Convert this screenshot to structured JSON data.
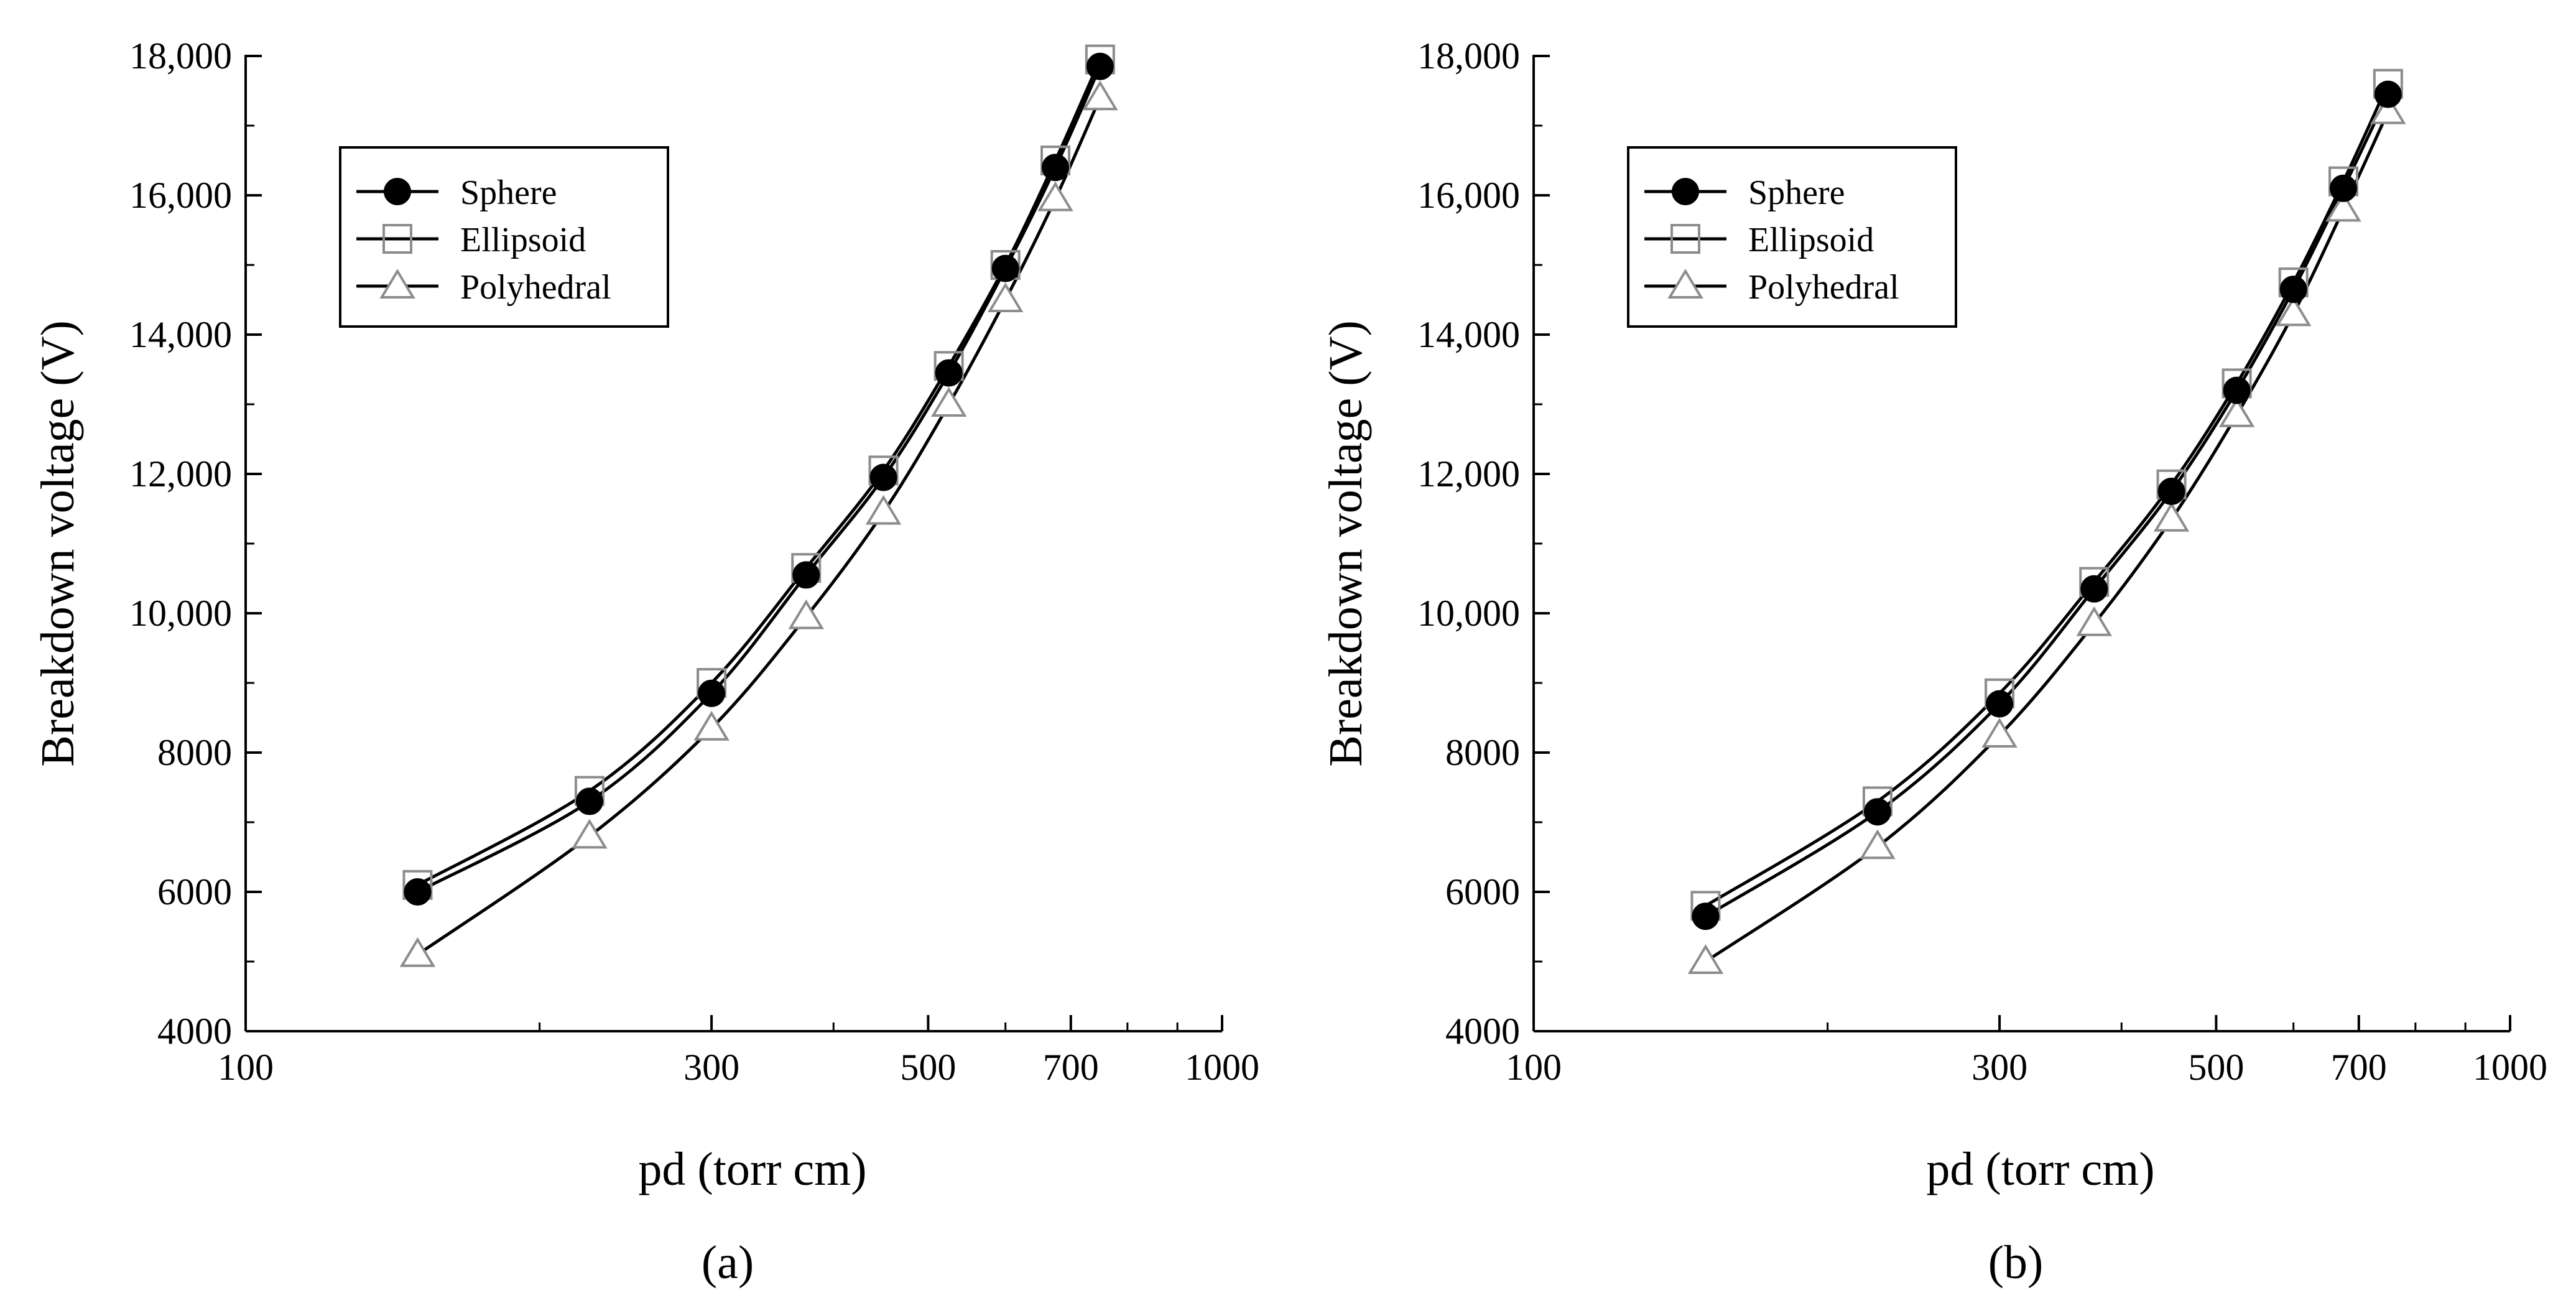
{
  "chart_data": [
    {
      "type": "line",
      "panel_label": "(a)",
      "xlabel": "pd (torr cm)",
      "ylabel": "Breakdown voltage (V)",
      "xscale": "log",
      "xlim": [
        100,
        1000
      ],
      "ylim": [
        4000,
        18000
      ],
      "x_ticks": [
        100,
        300,
        500,
        700,
        1000
      ],
      "x_tick_labels": [
        "100",
        "300",
        "500",
        "700",
        "1000"
      ],
      "y_ticks": [
        4000,
        6000,
        8000,
        10000,
        12000,
        14000,
        16000,
        18000
      ],
      "y_tick_labels": [
        "4000",
        "6000",
        "8000",
        "10,000",
        "12,000",
        "14,000",
        "16,000",
        "18,000"
      ],
      "legend_position": "top-left",
      "x": [
        150,
        225,
        300,
        375,
        450,
        525,
        600,
        675,
        750
      ],
      "series": [
        {
          "name": "Sphere",
          "marker": "filled-circle",
          "values": [
            6000,
            7300,
            8850,
            10550,
            11950,
            13450,
            14950,
            16400,
            17850
          ]
        },
        {
          "name": "Ellipsoid",
          "marker": "open-square",
          "values": [
            6100,
            7450,
            9000,
            10650,
            12050,
            13550,
            15000,
            16500,
            17950
          ]
        },
        {
          "name": "Polyhedral",
          "marker": "open-triangle",
          "values": [
            5100,
            6800,
            8350,
            9950,
            11450,
            13000,
            14500,
            15950,
            17400
          ]
        }
      ]
    },
    {
      "type": "line",
      "panel_label": "(b)",
      "xlabel": "pd (torr cm)",
      "ylabel": "Breakdown voltage (V)",
      "xscale": "log",
      "xlim": [
        100,
        1000
      ],
      "ylim": [
        4000,
        18000
      ],
      "x_ticks": [
        100,
        300,
        500,
        700,
        1000
      ],
      "x_tick_labels": [
        "100",
        "300",
        "500",
        "700",
        "1000"
      ],
      "y_ticks": [
        4000,
        6000,
        8000,
        10000,
        12000,
        14000,
        16000,
        18000
      ],
      "y_tick_labels": [
        "4000",
        "6000",
        "8000",
        "10,000",
        "12,000",
        "14,000",
        "16,000",
        "18,000"
      ],
      "legend_position": "top-left",
      "x": [
        150,
        225,
        300,
        375,
        450,
        525,
        600,
        675,
        750
      ],
      "series": [
        {
          "name": "Sphere",
          "marker": "filled-circle",
          "values": [
            5650,
            7150,
            8700,
            10350,
            11750,
            13200,
            14650,
            16100,
            17450
          ]
        },
        {
          "name": "Ellipsoid",
          "marker": "open-square",
          "values": [
            5800,
            7300,
            8850,
            10450,
            11850,
            13300,
            14750,
            16200,
            17600
          ]
        },
        {
          "name": "Polyhedral",
          "marker": "open-triangle",
          "values": [
            5000,
            6650,
            8250,
            9850,
            11350,
            12850,
            14300,
            15800,
            17200
          ]
        }
      ]
    }
  ]
}
